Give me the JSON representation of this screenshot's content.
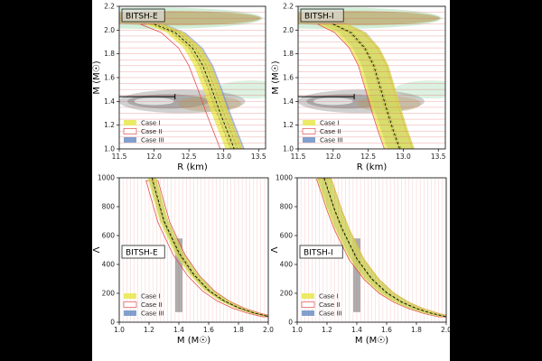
{
  "colors": {
    "case1": "#e8e84a",
    "case2_edge": "#e05050",
    "case3": "#6b8fc4",
    "gray": "#777777",
    "green": "#9bd8a8",
    "brown": "#b89a55"
  },
  "chart_data": [
    {
      "type": "area",
      "panel": "top-left",
      "title": "BITSH-E",
      "xlabel": "R (km)",
      "ylabel": "M (M☉)",
      "xlim": [
        11.5,
        13.6
      ],
      "ylim": [
        1.0,
        2.2
      ],
      "xticks": [
        "11.5",
        "12.0",
        "12.5",
        "13.0",
        "13.5"
      ],
      "yticks": [
        "1.0",
        "1.2",
        "1.4",
        "1.6",
        "1.8",
        "2.0",
        "2.2"
      ],
      "legend_position": "lower-left",
      "series": [
        {
          "name": "Case I",
          "points": [
            [
              12.0,
              2.05
            ],
            [
              12.3,
              1.98
            ],
            [
              12.55,
              1.85
            ],
            [
              12.7,
              1.7
            ],
            [
              12.83,
              1.5
            ],
            [
              12.95,
              1.3
            ],
            [
              13.05,
              1.15
            ],
            [
              13.15,
              1.0
            ]
          ],
          "band": 0.25
        },
        {
          "name": "Case II",
          "points": [
            [
              11.95,
              2.05
            ],
            [
              12.25,
              1.98
            ],
            [
              12.5,
              1.85
            ],
            [
              12.65,
              1.7
            ],
            [
              12.78,
              1.5
            ],
            [
              12.9,
              1.3
            ],
            [
              13.0,
              1.15
            ],
            [
              13.1,
              1.0
            ]
          ],
          "band": 0.3
        },
        {
          "name": "Case III",
          "points": [
            [
              12.05,
              2.05
            ],
            [
              12.35,
              1.98
            ],
            [
              12.6,
              1.85
            ],
            [
              12.75,
              1.7
            ],
            [
              12.88,
              1.5
            ],
            [
              13.0,
              1.3
            ],
            [
              13.1,
              1.15
            ],
            [
              13.2,
              1.0
            ]
          ],
          "band": 0.2
        }
      ],
      "reference_bar": {
        "y": 1.44,
        "x0": 11.5,
        "x1": 12.3
      }
    },
    {
      "type": "area",
      "panel": "top-right",
      "title": "BITSH-I",
      "xlabel": "R (km)",
      "ylabel": "M (M☉)",
      "xlim": [
        11.5,
        13.6
      ],
      "ylim": [
        1.0,
        2.2
      ],
      "xticks": [
        "11.5",
        "12.0",
        "12.5",
        "13.0",
        "13.5"
      ],
      "yticks": [
        "1.0",
        "1.2",
        "1.4",
        "1.6",
        "1.8",
        "2.0",
        "2.2"
      ],
      "legend_position": "lower-left",
      "series": [
        {
          "name": "Case I",
          "points": [
            [
              12.0,
              2.05
            ],
            [
              12.25,
              1.98
            ],
            [
              12.45,
              1.85
            ],
            [
              12.58,
              1.7
            ],
            [
              12.68,
              1.5
            ],
            [
              12.78,
              1.3
            ],
            [
              12.86,
              1.15
            ],
            [
              12.95,
              1.0
            ]
          ],
          "band": 0.42
        },
        {
          "name": "Case II",
          "points": [
            [
              11.98,
              2.05
            ],
            [
              12.22,
              1.98
            ],
            [
              12.43,
              1.85
            ],
            [
              12.56,
              1.7
            ],
            [
              12.66,
              1.5
            ],
            [
              12.76,
              1.3
            ],
            [
              12.84,
              1.15
            ],
            [
              12.93,
              1.0
            ]
          ],
          "band": 0.4
        },
        {
          "name": "Case III",
          "points": [
            [
              12.02,
              2.05
            ],
            [
              12.28,
              1.98
            ],
            [
              12.47,
              1.85
            ],
            [
              12.6,
              1.7
            ],
            [
              12.7,
              1.5
            ],
            [
              12.8,
              1.3
            ],
            [
              12.88,
              1.15
            ],
            [
              12.97,
              1.0
            ]
          ],
          "band": 0.38
        }
      ],
      "reference_bar": {
        "y": 1.44,
        "x0": 11.5,
        "x1": 12.3
      }
    },
    {
      "type": "area",
      "panel": "bottom-left",
      "title": "BITSH-E",
      "xlabel": "M (M☉)",
      "ylabel": "Λ",
      "xlim": [
        1.0,
        2.0
      ],
      "ylim": [
        0,
        1000
      ],
      "xticks": [
        "1.0",
        "1.2",
        "1.4",
        "1.6",
        "1.8",
        "2.0"
      ],
      "yticks": [
        "0",
        "200",
        "400",
        "600",
        "800",
        "1000"
      ],
      "legend_position": "lower-left",
      "series": [
        {
          "name": "Case I",
          "x": [
            1.22,
            1.3,
            1.4,
            1.5,
            1.6,
            1.7,
            1.8,
            1.9,
            2.0
          ],
          "y": [
            1000,
            700,
            480,
            330,
            220,
            150,
            100,
            65,
            40
          ],
          "band": 0.12
        },
        {
          "name": "Case II",
          "x": [
            1.22,
            1.3,
            1.4,
            1.5,
            1.6,
            1.7,
            1.8,
            1.9,
            2.0
          ],
          "y": [
            980,
            690,
            470,
            320,
            215,
            145,
            97,
            63,
            38
          ],
          "band": 0.16
        },
        {
          "name": "Case III",
          "x": [
            1.22,
            1.3,
            1.4,
            1.5,
            1.6,
            1.7,
            1.8,
            1.9,
            2.0
          ],
          "y": [
            1000,
            710,
            490,
            335,
            225,
            152,
            102,
            66,
            41
          ],
          "band": 0.1
        }
      ],
      "constraint_bar": {
        "x": 1.4,
        "ylow": 70,
        "yhigh": 580
      }
    },
    {
      "type": "area",
      "panel": "bottom-right",
      "title": "BITSH-I",
      "xlabel": "M (M☉)",
      "ylabel": "Λ",
      "xlim": [
        1.0,
        2.0
      ],
      "ylim": [
        0,
        1000
      ],
      "xticks": [
        "1.0",
        "1.2",
        "1.4",
        "1.6",
        "1.8",
        "2.0"
      ],
      "yticks": [
        "0",
        "200",
        "400",
        "600",
        "800",
        "1000"
      ],
      "legend_position": "lower-left",
      "series": [
        {
          "name": "Case I",
          "x": [
            1.18,
            1.25,
            1.3,
            1.4,
            1.5,
            1.6,
            1.7,
            1.8,
            1.9,
            2.0
          ],
          "y": [
            1000,
            780,
            650,
            440,
            300,
            205,
            140,
            95,
            62,
            38
          ],
          "band": 0.2
        },
        {
          "name": "Case II",
          "x": [
            1.18,
            1.25,
            1.3,
            1.4,
            1.5,
            1.6,
            1.7,
            1.8,
            1.9,
            2.0
          ],
          "y": [
            990,
            775,
            640,
            430,
            295,
            200,
            137,
            93,
            60,
            37
          ],
          "band": 0.2
        },
        {
          "name": "Case III",
          "x": [
            1.18,
            1.25,
            1.3,
            1.4,
            1.5,
            1.6,
            1.7,
            1.8,
            1.9,
            2.0
          ],
          "y": [
            1000,
            790,
            655,
            445,
            305,
            208,
            142,
            96,
            63,
            39
          ],
          "band": 0.18
        }
      ],
      "constraint_bar": {
        "x": 1.4,
        "ylow": 70,
        "yhigh": 580
      }
    }
  ]
}
